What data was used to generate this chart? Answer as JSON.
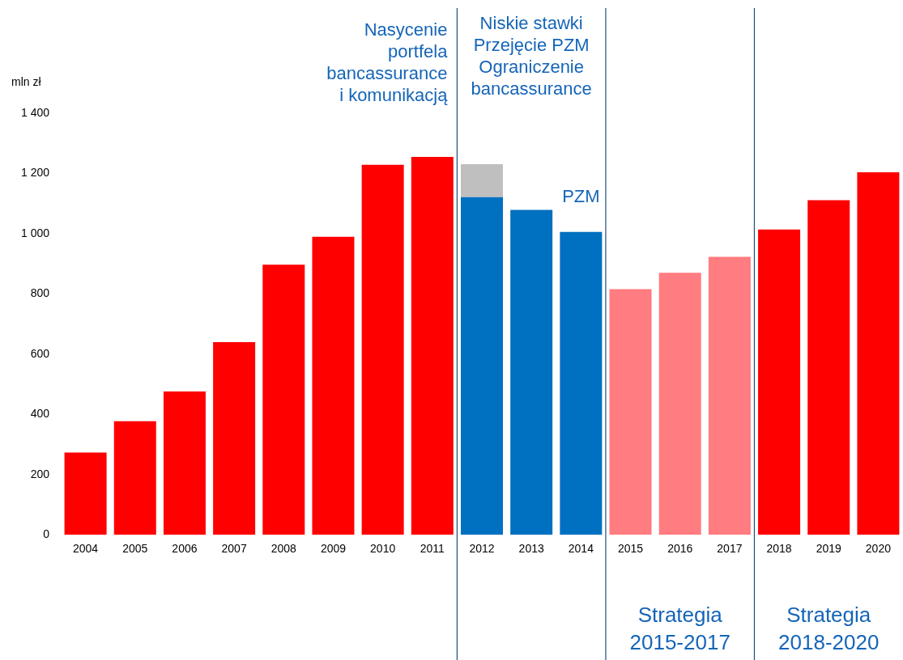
{
  "chart_data": {
    "type": "bar",
    "stacked": true,
    "ylabel": "mln zł",
    "categories": [
      "2004",
      "2005",
      "2006",
      "2007",
      "2008",
      "2009",
      "2010",
      "2011",
      "2012",
      "2013",
      "2014",
      "2015",
      "2016",
      "2017",
      "2018",
      "2019",
      "2020"
    ],
    "series": [
      {
        "color": "#ff0000",
        "values": [
          273,
          377,
          476,
          640,
          897,
          990,
          1229,
          1255,
          null,
          null,
          null,
          null,
          null,
          null,
          1014,
          1111,
          1204
        ]
      },
      {
        "color": "#0070c0",
        "values": [
          null,
          null,
          null,
          null,
          null,
          null,
          null,
          null,
          1121,
          1079,
          1006,
          null,
          null,
          null,
          null,
          null,
          null
        ]
      },
      {
        "color": "#ff7c80",
        "values": [
          null,
          null,
          null,
          null,
          null,
          null,
          null,
          null,
          null,
          null,
          null,
          816,
          870,
          923,
          null,
          null,
          null
        ]
      },
      {
        "color": "#bfbfbf",
        "values": [
          null,
          null,
          null,
          null,
          null,
          null,
          null,
          null,
          110,
          null,
          null,
          null,
          null,
          null,
          null,
          null,
          null
        ]
      }
    ],
    "ylim": [
      0,
      1400
    ],
    "yticks": [
      0,
      200,
      400,
      600,
      800,
      {
        "value": 1000,
        "label": "1 000"
      },
      {
        "value": 1200,
        "label": "1 200"
      },
      {
        "value": 1400,
        "label": "1 400"
      }
    ],
    "grid": false,
    "legend": false,
    "annotations": [
      "Nasycenie\nportfela\nbancassurance\ni komunikacją",
      "Niskie stawki\nPrzejęcie PZM\nOgraniczenie\nbancassurance",
      "PZM",
      "Strategia\n2015-2017",
      "Strategia\n2018-2020"
    ]
  }
}
